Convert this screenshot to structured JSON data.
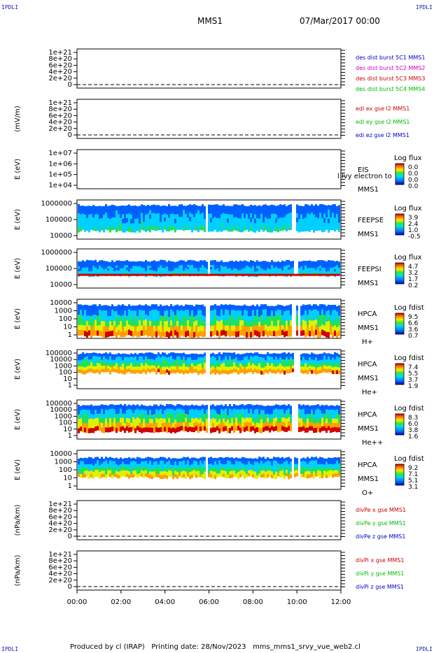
{
  "corners": {
    "tl": "IPDLI",
    "tr": "IPDLI",
    "bl": "IPDLI",
    "br": "IPDLI"
  },
  "header": {
    "spacecraft": "MMS1",
    "date": "07/Mar/2017 00:00"
  },
  "footer": {
    "produced": "Produced by cl (IRAP)",
    "printing": "Printing date: 28/Nov/2023",
    "file": "mms_mms1_srvy_vue_web2.cl"
  },
  "colors": {
    "blue": "#0000cc",
    "magenta": "#cc00cc",
    "red": "#cc0000",
    "green": "#00bb00"
  },
  "chart_data": {
    "type": "heatmap",
    "xaxis": {
      "ticks": [
        "00:00",
        "02:00",
        "04:00",
        "06:00",
        "08:00",
        "10:00",
        "12:00"
      ],
      "range_hours": [
        0,
        12
      ]
    },
    "panels": [
      {
        "id": "des-dist",
        "kind": "line",
        "ylabel": "",
        "yticks": [
          "1e+21",
          "8e+20",
          "6e+20",
          "4e+20",
          "2e+20",
          "0"
        ],
        "legend": [
          {
            "text": "des dist burst 5C1 MMS1",
            "color": "blue"
          },
          {
            "text": "des dist burst 5C2 MMS2",
            "color": "magenta"
          },
          {
            "text": "des dist burst 5C3 MMS3",
            "color": "red"
          },
          {
            "text": "des dist burst 5C4 MMS4",
            "color": "green"
          }
        ]
      },
      {
        "id": "edi",
        "kind": "line",
        "ylabel": "(mV/m)",
        "yticks": [
          "1e+21",
          "8e+20",
          "6e+20",
          "4e+20",
          "2e+20",
          "0"
        ],
        "legend": [
          {
            "text": "edi ex gse l2 MMS1",
            "color": "red"
          },
          {
            "text": "edi ey gse l2 MMS1",
            "color": "green"
          },
          {
            "text": "edi ez gse l2 MMS1",
            "color": "blue"
          }
        ]
      },
      {
        "id": "eis",
        "kind": "spec",
        "ylabel": "E (eV)",
        "yticks": [
          "1e+07",
          "1e+06",
          "1e+05",
          "1e+04"
        ],
        "labels": [
          "EIS",
          "MMS1"
        ],
        "overlay": "l lvy electron to",
        "cbar_title": "Log flux",
        "cbar_ticks": [
          "0.0",
          "0.0",
          "0.0",
          "0.0"
        ],
        "profile": "empty"
      },
      {
        "id": "feepse",
        "kind": "spec",
        "ylabel": "E (eV)",
        "yticks": [
          "1000000",
          "100000",
          "10000"
        ],
        "labels": [
          "FEEPSE",
          "MMS1"
        ],
        "cbar_title": "Log flux",
        "cbar_ticks": [
          "3.9",
          "2.4",
          "1.0",
          "-0.5"
        ],
        "profile": "feepse"
      },
      {
        "id": "feepsi",
        "kind": "spec",
        "ylabel": "E (eV)",
        "yticks": [
          "1000000",
          "100000",
          "10000"
        ],
        "labels": [
          "FEEPSI",
          "MMS1"
        ],
        "cbar_title": "Log flux",
        "cbar_ticks": [
          "4.7",
          "3.2",
          "1.7",
          "0.2"
        ],
        "profile": "feepsi"
      },
      {
        "id": "hpca-h",
        "kind": "spec",
        "ylabel": "E (eV)",
        "yticks": [
          "10000",
          "1000",
          "100",
          "10",
          "1"
        ],
        "labels": [
          "HPCA",
          "MMS1",
          "H+"
        ],
        "cbar_title": "Log fdist",
        "cbar_ticks": [
          "9.5",
          "6.6",
          "3.6",
          "0.7"
        ],
        "profile": "hpca-h"
      },
      {
        "id": "hpca-he",
        "kind": "spec",
        "ylabel": "E (eV)",
        "yticks": [
          "100000",
          "10000",
          "1000",
          "100",
          "10",
          "1"
        ],
        "labels": [
          "HPCA",
          "MMS1",
          "He+"
        ],
        "cbar_title": "Log fdist",
        "cbar_ticks": [
          "7.4",
          "5.5",
          "3.7",
          "1.9"
        ],
        "profile": "hpca-he"
      },
      {
        "id": "hpca-he2",
        "kind": "spec",
        "ylabel": "E (eV)",
        "yticks": [
          "100000",
          "10000",
          "1000",
          "100",
          "10",
          "1"
        ],
        "labels": [
          "HPCA",
          "MMS1",
          "He++"
        ],
        "cbar_title": "Log fdist",
        "cbar_ticks": [
          "8.3",
          "6.0",
          "3.8",
          "1.6"
        ],
        "profile": "hpca-he2"
      },
      {
        "id": "hpca-o",
        "kind": "spec",
        "ylabel": "E (eV)",
        "yticks": [
          "10000",
          "1000",
          "100",
          "10",
          "1"
        ],
        "labels": [
          "HPCA",
          "MMS1",
          "O+"
        ],
        "cbar_title": "Log fdist",
        "cbar_ticks": [
          "9.2",
          "7.1",
          "5.1",
          "3.1"
        ],
        "profile": "hpca-o"
      },
      {
        "id": "divpe",
        "kind": "line",
        "ylabel": "(nPa/km)",
        "yticks": [
          "1e+21",
          "8e+20",
          "6e+20",
          "4e+20",
          "2e+20",
          "0"
        ],
        "legend": [
          {
            "text": "divPe x gse MMS1",
            "color": "red"
          },
          {
            "text": "divPe y gse MMS1",
            "color": "green"
          },
          {
            "text": "divPe z gse MMS1",
            "color": "blue"
          }
        ]
      },
      {
        "id": "divpi",
        "kind": "line",
        "ylabel": "(nPa/km)",
        "yticks": [
          "1e+21",
          "8e+20",
          "6e+20",
          "4e+20",
          "2e+20",
          "0"
        ],
        "legend": [
          {
            "text": "divPi x gse MMS1",
            "color": "red"
          },
          {
            "text": "divPi y gse MMS1",
            "color": "green"
          },
          {
            "text": "divPi z gse MMS1",
            "color": "blue"
          }
        ]
      }
    ]
  }
}
